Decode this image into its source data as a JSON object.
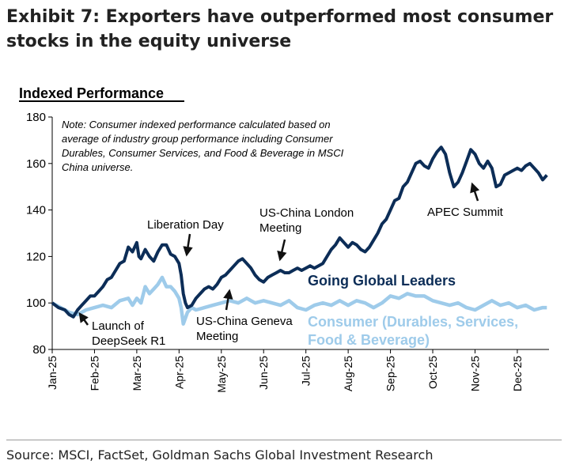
{
  "header": {
    "title": "Exhibit 7: Exporters have outperformed most consumer stocks in the equity universe"
  },
  "chart_data": {
    "type": "line",
    "title": "Indexed Performance",
    "ylim": [
      80,
      180
    ],
    "yticks": [
      80,
      100,
      120,
      140,
      160,
      180
    ],
    "categories": [
      "Jan-25",
      "Feb-25",
      "Mar-25",
      "Apr-25",
      "May-25",
      "Jun-25",
      "Jul-25",
      "Aug-25",
      "Sep-25",
      "Oct-25",
      "Nov-25",
      "Dec-25"
    ],
    "x_range": [
      0,
      11.75
    ],
    "note": [
      "Note: Consumer indexed performance calculated based on",
      "average of industry group performance including Consumer",
      "Durables, Consumer Services, and Food & Beverage in MSCI",
      "China universe."
    ],
    "series": [
      {
        "name": "Going Global Leaders",
        "color": "#0c2d57",
        "x": [
          0,
          0.15,
          0.3,
          0.4,
          0.5,
          0.6,
          0.7,
          0.8,
          0.9,
          1.0,
          1.1,
          1.2,
          1.3,
          1.4,
          1.5,
          1.6,
          1.7,
          1.8,
          1.9,
          2.0,
          2.05,
          2.1,
          2.2,
          2.3,
          2.4,
          2.5,
          2.6,
          2.7,
          2.8,
          2.9,
          3.0,
          3.05,
          3.1,
          3.15,
          3.2,
          3.3,
          3.4,
          3.5,
          3.6,
          3.7,
          3.8,
          3.9,
          4.0,
          4.1,
          4.2,
          4.3,
          4.4,
          4.5,
          4.6,
          4.7,
          4.8,
          4.9,
          5.0,
          5.1,
          5.2,
          5.3,
          5.4,
          5.5,
          5.6,
          5.7,
          5.8,
          5.9,
          6.0,
          6.1,
          6.2,
          6.3,
          6.4,
          6.5,
          6.6,
          6.7,
          6.8,
          6.9,
          7.0,
          7.1,
          7.2,
          7.3,
          7.4,
          7.5,
          7.6,
          7.7,
          7.8,
          7.9,
          8.0,
          8.1,
          8.2,
          8.3,
          8.4,
          8.5,
          8.6,
          8.7,
          8.8,
          8.9,
          9.0,
          9.1,
          9.2,
          9.3,
          9.4,
          9.5,
          9.6,
          9.7,
          9.8,
          9.9,
          10.0,
          10.1,
          10.2,
          10.3,
          10.4,
          10.5,
          10.6,
          10.7,
          10.8,
          10.9,
          11.0,
          11.1,
          11.2,
          11.3,
          11.4,
          11.5,
          11.6,
          11.7
        ],
        "values": [
          100,
          98,
          97,
          95,
          94,
          97,
          99,
          101,
          103,
          103,
          105,
          107,
          110,
          111,
          114,
          117,
          118,
          124,
          122,
          126,
          120,
          119,
          123,
          120,
          118,
          122,
          125,
          125,
          121,
          120,
          117,
          112,
          104,
          100,
          98,
          99,
          102,
          104,
          106,
          107,
          106,
          108,
          111,
          112,
          114,
          116,
          118,
          119,
          117,
          115,
          112,
          110,
          109,
          111,
          112,
          113,
          114,
          113,
          113,
          114,
          115,
          114,
          115,
          116,
          115,
          116,
          117,
          120,
          123,
          125,
          128,
          126,
          124,
          126,
          125,
          123,
          122,
          124,
          127,
          130,
          134,
          136,
          140,
          144,
          145,
          150,
          152,
          156,
          160,
          161,
          159,
          158,
          162,
          165,
          167,
          164,
          156,
          150,
          152,
          156,
          161,
          166,
          164,
          160,
          158,
          161,
          158,
          150,
          151,
          155,
          156,
          157,
          158,
          157,
          159,
          160,
          158,
          156,
          153,
          155
        ]
      },
      {
        "name": "Consumer (Durables, Services, Food & Beverage)",
        "color": "#9ecbea",
        "x": [
          0,
          0.2,
          0.4,
          0.6,
          0.8,
          1.0,
          1.2,
          1.4,
          1.6,
          1.8,
          1.9,
          2.0,
          2.1,
          2.2,
          2.3,
          2.4,
          2.5,
          2.6,
          2.7,
          2.8,
          2.9,
          3.0,
          3.05,
          3.1,
          3.2,
          3.3,
          3.4,
          3.6,
          3.8,
          4.0,
          4.2,
          4.4,
          4.6,
          4.8,
          5.0,
          5.2,
          5.4,
          5.6,
          5.8,
          6.0,
          6.2,
          6.4,
          6.6,
          6.8,
          7.0,
          7.2,
          7.4,
          7.6,
          7.8,
          8.0,
          8.2,
          8.4,
          8.6,
          8.8,
          9.0,
          9.2,
          9.4,
          9.6,
          9.8,
          10.0,
          10.2,
          10.4,
          10.6,
          10.8,
          11.0,
          11.2,
          11.4,
          11.6,
          11.7
        ],
        "values": [
          100,
          98,
          96,
          95,
          97,
          98,
          99,
          98,
          101,
          102,
          99,
          102,
          100,
          107,
          104,
          106,
          108,
          111,
          107,
          107,
          105,
          102,
          98,
          91,
          96,
          98,
          97,
          98,
          99,
          100,
          101,
          100,
          102,
          100,
          101,
          100,
          99,
          101,
          98,
          97,
          99,
          100,
          99,
          101,
          99,
          101,
          100,
          98,
          100,
          103,
          102,
          104,
          103,
          103,
          101,
          100,
          99,
          100,
          98,
          97,
          99,
          101,
          99,
          100,
          98,
          99,
          97,
          98,
          98
        ]
      }
    ],
    "labels": {
      "ggl": "Going Global Leaders",
      "consumer_1": "Consumer (Durables, Services,",
      "consumer_2": "Food & Beverage)"
    },
    "annotations": [
      {
        "id": "liberation",
        "lines": [
          "Liberation Day"
        ]
      },
      {
        "id": "london",
        "lines": [
          "US-China London",
          "Meeting"
        ]
      },
      {
        "id": "apec",
        "lines": [
          "APEC Summit"
        ]
      },
      {
        "id": "deepseek",
        "lines": [
          "Launch of",
          "DeepSeek R1"
        ]
      },
      {
        "id": "geneva",
        "lines": [
          "US-China Geneva",
          "Meeting"
        ]
      }
    ]
  },
  "footer": {
    "source": "Source: MSCI, FactSet, Goldman Sachs Global Investment Research"
  }
}
